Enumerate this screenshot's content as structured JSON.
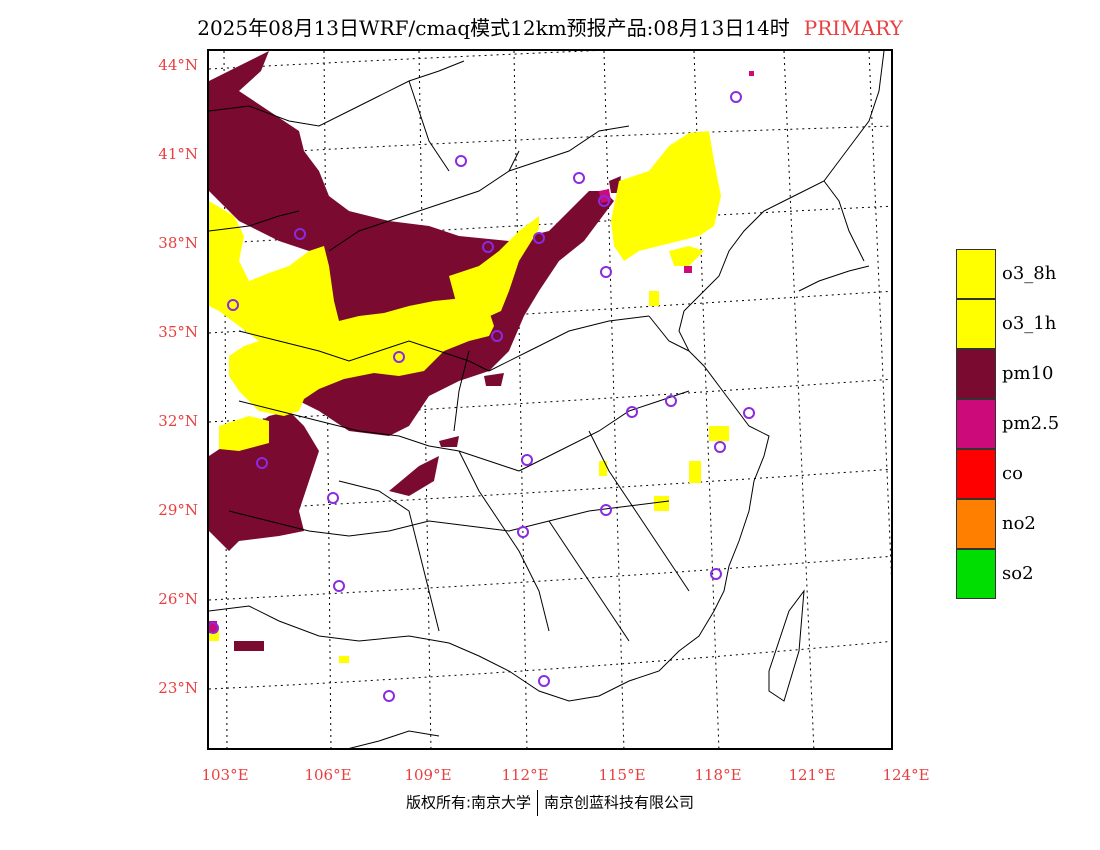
{
  "title": {
    "main": "2025年08月13日WRF/cmaq模式12km预报产品:08月13日14时",
    "pollutant": "PRIMARY"
  },
  "axes": {
    "latitude_labels": [
      "44°N",
      "41°N",
      "38°N",
      "35°N",
      "32°N",
      "29°N",
      "26°N",
      "23°N"
    ],
    "longitude_labels": [
      "103°E",
      "106°E",
      "109°E",
      "112°E",
      "115°E",
      "118°E",
      "121°E",
      "124°E"
    ]
  },
  "legend": [
    {
      "label": "o3_8h",
      "color": "#ffff00"
    },
    {
      "label": "o3_1h",
      "color": "#ffff00"
    },
    {
      "label": "pm10",
      "color": "#7a0a30"
    },
    {
      "label": "pm2.5",
      "color": "#cc0a7a"
    },
    {
      "label": "co",
      "color": "#ff0000"
    },
    {
      "label": "no2",
      "color": "#ff8000"
    },
    {
      "label": "so2",
      "color": "#00dd00"
    }
  ],
  "credit": {
    "left": "版权所有:南京大学",
    "right": "南京创蓝科技有限公司"
  },
  "colors": {
    "axis_label": "#e84040",
    "station_marker": "#8a2be2",
    "border_line": "#000000"
  }
}
